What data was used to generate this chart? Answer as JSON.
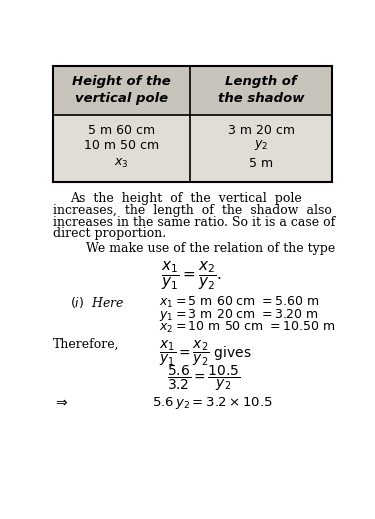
{
  "bg_color": "#ffffff",
  "table_header_bg": "#c8c4bc",
  "table_body_bg": "#e0ddd6",
  "table_col1_header": "Height of the\nvertical pole",
  "table_col2_header": "Length of\nthe shadow",
  "row1_col1": "5 m 60 cm",
  "row1_col2": "3 m 20 cm",
  "row2_col1": "10 m 50 cm",
  "row2_col2": "$y_2$",
  "row3_col1": "$x_3$",
  "row3_col2": "5 m",
  "para1_line1": "As  the  height  of  the  vertical  pole",
  "para1_line2": "increases,  the  length  of  the  shadow  also",
  "para1_line3": "increases in the same ratio. So it is a case of",
  "para1_line4": "direct proportion.",
  "para2": "We make use of the relation of the type",
  "relation": "$\\dfrac{x_1}{y_1} = \\dfrac{x_2}{y_2}.$",
  "here_label": "$(i)$  Here",
  "here_line1": "$x_1 = 5$ m $60$ cm $= 5.60$ m",
  "here_line2": "$y_1 = 3$ m $20$ cm $= 3.20$ m",
  "here_line3": "$x_2 = 10$ m $50$ cm $= 10.50$ m",
  "therefore_label": "Therefore,",
  "therefore_rel": "$\\dfrac{x_1}{y_1} = \\dfrac{x_2}{y_2}$ gives",
  "frac_line": "$\\dfrac{5.6}{3.2} = \\dfrac{10.5}{y_2}$",
  "arrow": "$\\Rightarrow$",
  "final": "$5.6\\, y_2 = 3.2 \\times 10.5$"
}
